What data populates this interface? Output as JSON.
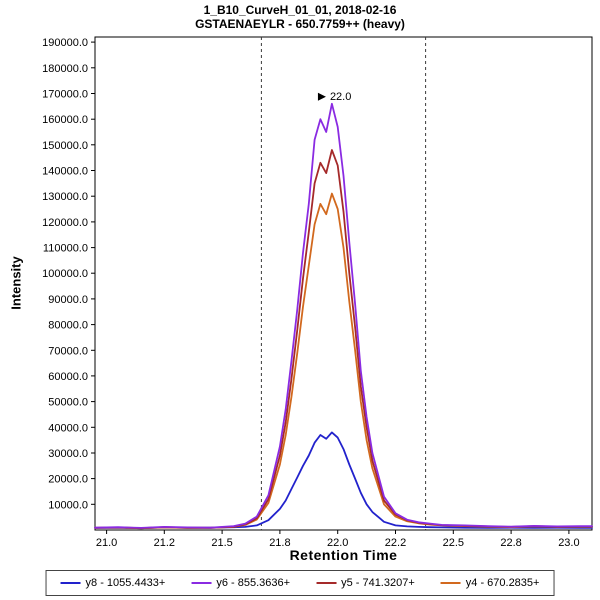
{
  "title": {
    "line1": "1_B10_CurveH_01_01, 2018-02-16",
    "line2": "GSTAENAEYLR - 650.7759++ (heavy)"
  },
  "axes": {
    "x_label": "Retention Time",
    "y_label": "Intensity"
  },
  "chart_data": {
    "type": "line",
    "title": "1_B10_CurveH_01_01, 2018-02-16",
    "subtitle": "GSTAENAEYLR - 650.7759++ (heavy)",
    "xlabel": "Retention Time",
    "ylabel": "Intensity",
    "xlim": [
      20.95,
      23.1
    ],
    "ylim": [
      0,
      192000
    ],
    "grid": false,
    "legend_position": "bottom",
    "x_ticks": [
      {
        "value": 21.0,
        "label": "21.0"
      },
      {
        "value": 21.25,
        "label": "21.2"
      },
      {
        "value": 21.5,
        "label": "21.5"
      },
      {
        "value": 21.75,
        "label": "21.8"
      },
      {
        "value": 22.0,
        "label": "22.0"
      },
      {
        "value": 22.25,
        "label": "22.2"
      },
      {
        "value": 22.5,
        "label": "22.5"
      },
      {
        "value": 22.75,
        "label": "22.8"
      },
      {
        "value": 23.0,
        "label": "23.0"
      }
    ],
    "y_ticks": [
      {
        "value": 10000,
        "label": "10000.0"
      },
      {
        "value": 20000,
        "label": "20000.0"
      },
      {
        "value": 30000,
        "label": "30000.0"
      },
      {
        "value": 40000,
        "label": "40000.0"
      },
      {
        "value": 50000,
        "label": "50000.0"
      },
      {
        "value": 60000,
        "label": "60000.0"
      },
      {
        "value": 70000,
        "label": "70000.0"
      },
      {
        "value": 80000,
        "label": "80000.0"
      },
      {
        "value": 90000,
        "label": "90000.0"
      },
      {
        "value": 100000,
        "label": "100000.0"
      },
      {
        "value": 110000,
        "label": "110000.0"
      },
      {
        "value": 120000,
        "label": "120000.0"
      },
      {
        "value": 130000,
        "label": "130000.0"
      },
      {
        "value": 140000,
        "label": "140000.0"
      },
      {
        "value": 150000,
        "label": "150000.0"
      },
      {
        "value": 160000,
        "label": "160000.0"
      },
      {
        "value": 170000,
        "label": "170000.0"
      },
      {
        "value": 180000,
        "label": "180000.0"
      },
      {
        "value": 190000,
        "label": "190000.0"
      }
    ],
    "boundaries": [
      21.67,
      22.38
    ],
    "annotation": {
      "x": 21.975,
      "y": 166000,
      "label": "22.0",
      "color": "#8a2be2"
    },
    "x": [
      20.95,
      21.05,
      21.15,
      21.25,
      21.35,
      21.45,
      21.55,
      21.6,
      21.65,
      21.7,
      21.75,
      21.775,
      21.8,
      21.825,
      21.85,
      21.875,
      21.9,
      21.925,
      21.95,
      21.975,
      22.0,
      22.025,
      22.05,
      22.075,
      22.1,
      22.125,
      22.15,
      22.2,
      22.25,
      22.3,
      22.35,
      22.4,
      22.45,
      22.55,
      22.65,
      22.75,
      22.85,
      22.95,
      23.05,
      23.1
    ],
    "series": [
      {
        "name": "y8 - 1055.4433+",
        "color": "#2222cc",
        "values": [
          800,
          900,
          700,
          1000,
          800,
          900,
          1100,
          1200,
          1800,
          3800,
          8200,
          11500,
          16000,
          20500,
          25000,
          29000,
          34000,
          37000,
          35500,
          38000,
          36000,
          31500,
          25500,
          20000,
          14500,
          10000,
          7000,
          3200,
          1800,
          1400,
          1200,
          1100,
          1000,
          900,
          800,
          900,
          800,
          900,
          800,
          800
        ]
      },
      {
        "name": "y6 - 855.3636+",
        "color": "#8a2be2",
        "values": [
          900,
          1100,
          800,
          1200,
          1000,
          900,
          1500,
          2500,
          5200,
          13500,
          32500,
          47000,
          66000,
          86000,
          108000,
          127000,
          152000,
          160000,
          155000,
          166000,
          157000,
          138000,
          112000,
          88000,
          62000,
          44000,
          30000,
          13000,
          6500,
          4000,
          3000,
          2500,
          2000,
          1800,
          1500,
          1300,
          1600,
          1400,
          1500,
          1500
        ]
      },
      {
        "name": "y5 - 741.3207+",
        "color": "#a52a2a",
        "values": [
          850,
          1000,
          750,
          1100,
          900,
          850,
          1300,
          2200,
          4600,
          12000,
          29000,
          42000,
          59000,
          78000,
          98000,
          116000,
          135000,
          143000,
          139000,
          148000,
          142000,
          124000,
          100000,
          79000,
          56000,
          40000,
          27000,
          11500,
          6000,
          3800,
          2800,
          2300,
          1900,
          1600,
          1400,
          1200,
          1500,
          1300,
          1400,
          1400
        ]
      },
      {
        "name": "y4 - 670.2835+",
        "color": "#d2691e",
        "values": [
          800,
          950,
          700,
          1050,
          850,
          800,
          1250,
          2000,
          4100,
          10500,
          25500,
          37000,
          52000,
          69000,
          87000,
          103000,
          119000,
          127000,
          123000,
          131000,
          125000,
          110000,
          89000,
          70000,
          50000,
          35000,
          24000,
          10000,
          5200,
          3400,
          2600,
          2100,
          1800,
          1500,
          1300,
          1100,
          1400,
          1200,
          1300,
          1300
        ]
      }
    ]
  }
}
